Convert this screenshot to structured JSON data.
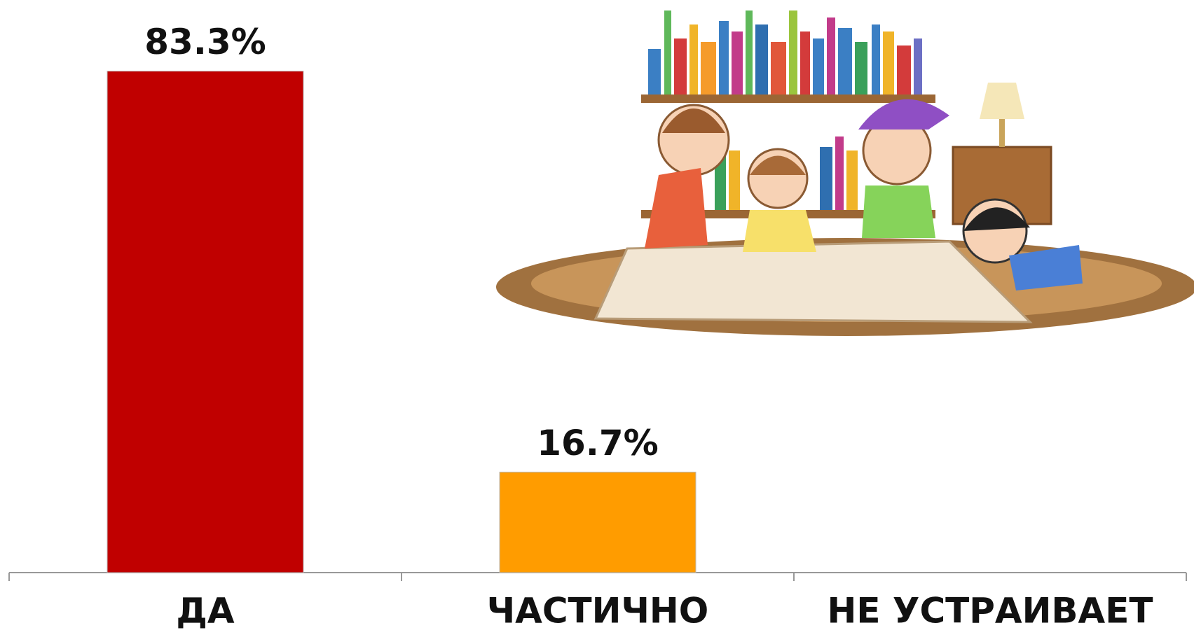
{
  "chart_data": {
    "type": "bar",
    "categories": [
      "ДА",
      "ЧАСТИЧНО",
      "НЕ УСТРАИВАЕТ"
    ],
    "values": [
      83.3,
      16.7,
      0
    ],
    "value_labels": [
      "83.3%",
      "16.7%",
      null
    ],
    "colors": [
      "#c00000",
      "#ff9c00",
      null
    ],
    "ylim": [
      0,
      100
    ]
  }
}
